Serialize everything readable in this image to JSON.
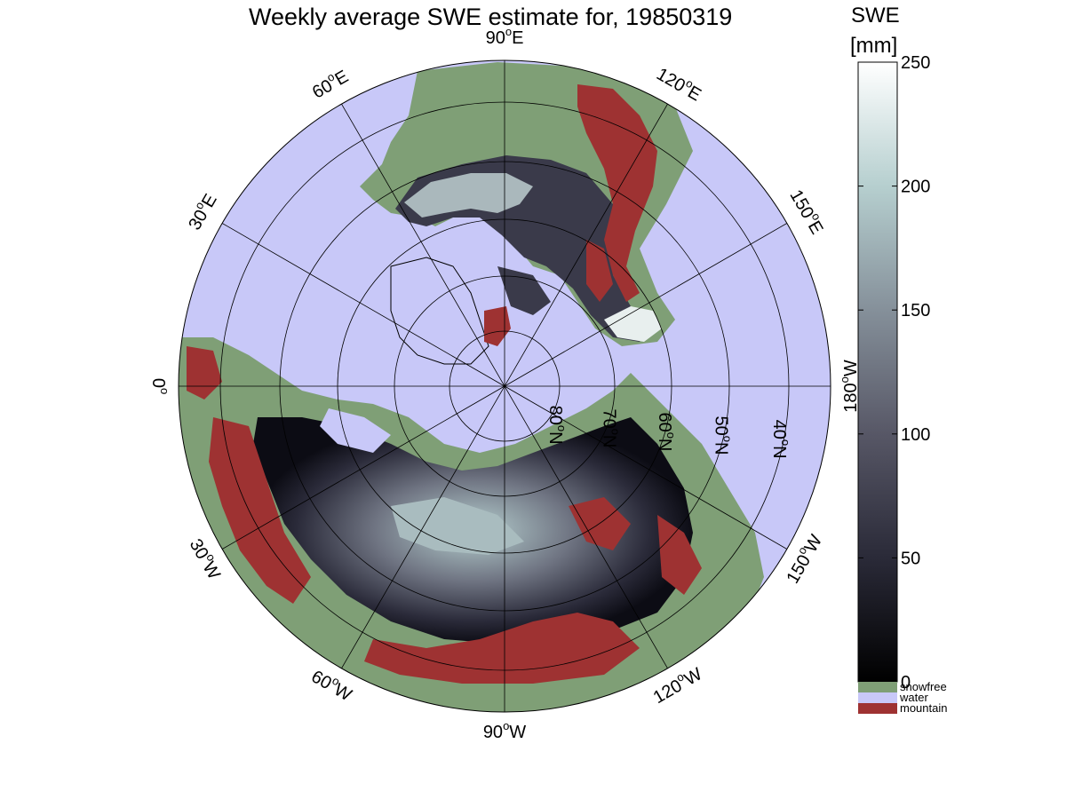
{
  "title": "Weekly average SWE estimate for, 19850319",
  "colorbar": {
    "title": "SWE",
    "unit": "[mm]",
    "min": 0,
    "max": 250,
    "ticks": [
      0,
      50,
      100,
      150,
      200,
      250
    ],
    "colors": [
      "#000000",
      "#2a2a38",
      "#575766",
      "#85909a",
      "#b6cfcf",
      "#ffffff"
    ]
  },
  "legend": [
    {
      "label": "snowfree",
      "color": "#7f9f76"
    },
    {
      "label": "water",
      "color": "#c8c8f8"
    },
    {
      "label": "mountain",
      "color": "#9e3232"
    }
  ],
  "map": {
    "projection": "north polar stereographic",
    "ocean_color": "#c8c8f8",
    "longitude_labels": [
      {
        "lon": -90,
        "text": "90",
        "suffix": "W"
      },
      {
        "lon": -60,
        "text": "60",
        "suffix": "W"
      },
      {
        "lon": -120,
        "text": "120",
        "suffix": "W"
      },
      {
        "lon": -30,
        "text": "30",
        "suffix": "W"
      },
      {
        "lon": -150,
        "text": "150",
        "suffix": "W"
      },
      {
        "lon": 0,
        "text": "0",
        "suffix": ""
      },
      {
        "lon": 180,
        "text": "180",
        "suffix": "W"
      },
      {
        "lon": 30,
        "text": "30",
        "suffix": "E"
      },
      {
        "lon": 150,
        "text": "150",
        "suffix": "E"
      },
      {
        "lon": 60,
        "text": "60",
        "suffix": "E"
      },
      {
        "lon": 120,
        "text": "120",
        "suffix": "E"
      },
      {
        "lon": 90,
        "text": "90",
        "suffix": "E"
      }
    ],
    "latitude_labels": [
      {
        "lat": 80,
        "text": "80",
        "suffix": "N"
      },
      {
        "lat": 70,
        "text": "70",
        "suffix": "N"
      },
      {
        "lat": 60,
        "text": "60",
        "suffix": "N"
      },
      {
        "lat": 50,
        "text": "50",
        "suffix": "N"
      },
      {
        "lat": 40,
        "text": "40",
        "suffix": "N"
      }
    ]
  }
}
